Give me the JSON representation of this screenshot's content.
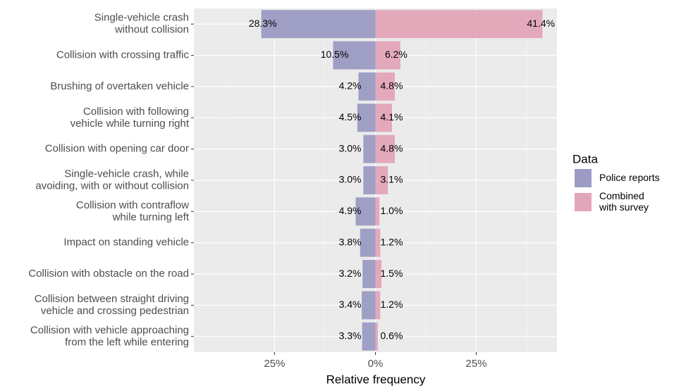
{
  "chart_data": {
    "type": "diverging_bar",
    "x_label": "Relative frequency",
    "categories": [
      "Single-vehicle crash\nwithout collision",
      "Collision with crossing traffic",
      "Brushing of overtaken vehicle",
      "Collision with following\nvehicle while turning right",
      "Collision with opening car door",
      "Single-vehicle crash, while\navoiding, with or without collision",
      "Collision with contraflow\nwhile turning left",
      "Impact on standing vehicle",
      "Collision with obstacle on the road",
      "Collision between straight driving\nvehicle and crossing pedestrian",
      "Collision with vehicle approaching\nfrom the left while entering"
    ],
    "series": [
      {
        "name": "Police reports",
        "color": "#9b9bc4",
        "values": [
          -28.3,
          -10.5,
          -4.2,
          -4.5,
          -3.0,
          -3.0,
          -4.9,
          -3.8,
          -3.2,
          -3.4,
          -3.3
        ],
        "value_labels": [
          "28.3%",
          "10.5%",
          "4.2%",
          "4.5%",
          "3.0%",
          "3.0%",
          "4.9%",
          "3.8%",
          "3.2%",
          "3.4%",
          "3.3%"
        ]
      },
      {
        "name": "Combined\nwith survey",
        "color": "#e3a5b8",
        "values": [
          41.4,
          6.2,
          4.8,
          4.1,
          4.8,
          3.1,
          1.0,
          1.2,
          1.5,
          1.2,
          0.6
        ],
        "value_labels": [
          "41.4%",
          "6.2%",
          "4.8%",
          "4.1%",
          "4.8%",
          "3.1%",
          "1.0%",
          "1.2%",
          "1.5%",
          "1.2%",
          "0.6%"
        ]
      }
    ],
    "xlim": [
      -45,
      45
    ],
    "xticks": [
      {
        "value": -25,
        "label": "25%"
      },
      {
        "value": 0,
        "label": "0%"
      },
      {
        "value": 25,
        "label": "25%"
      }
    ],
    "xminor": [
      -37.5,
      -12.5,
      12.5,
      37.5
    ],
    "grid": true,
    "legend_title": "Data",
    "legend": "right"
  }
}
